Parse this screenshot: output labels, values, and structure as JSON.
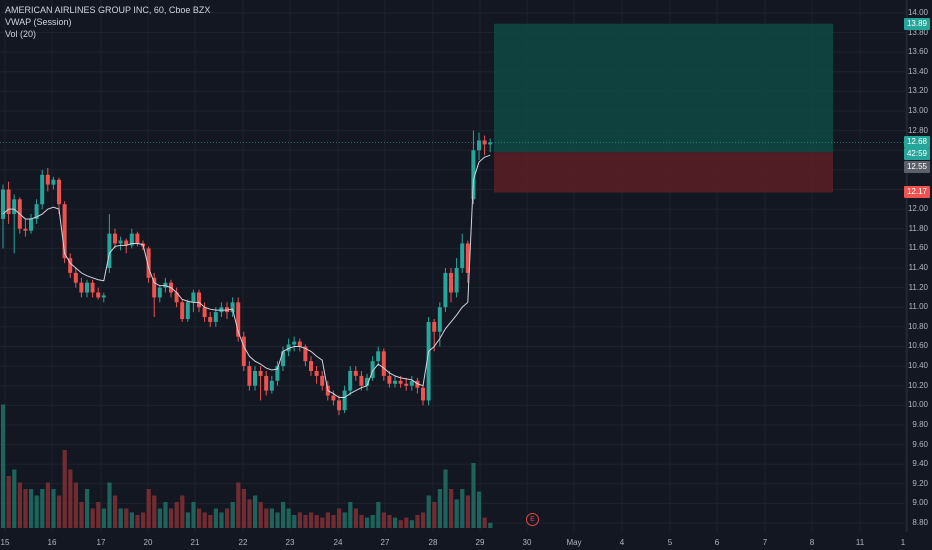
{
  "legend": {
    "symbol": "AMERICAN AIRLINES GROUP INC, 60, Cboe BZX",
    "vwap": "VWAP (Session)",
    "vol": "Vol (20)"
  },
  "price_labels": {
    "target": "13.89",
    "last": "12.68",
    "countdown": "42:59",
    "vwap_value": "12.55",
    "stop": "12.17"
  },
  "earnings_marker": "E",
  "colors": {
    "background": "#131722",
    "up": "#26a69a",
    "down": "#ef5350",
    "vwap": "#d1d4dc",
    "target_zone": "#0f4a44",
    "stop_zone": "#5c1f26"
  },
  "chart_data": {
    "type": "candlestick",
    "timeframe": "60",
    "y_axis": {
      "ticks": [
        "14.00",
        "13.80",
        "13.60",
        "13.40",
        "13.20",
        "13.00",
        "12.80",
        "12.60",
        "12.40",
        "12.20",
        "12.00",
        "11.80",
        "11.60",
        "11.40",
        "11.20",
        "11.00",
        "10.80",
        "10.60",
        "10.40",
        "10.20",
        "10.00",
        "9.80",
        "9.60",
        "9.40",
        "9.20",
        "9.00",
        "8.80"
      ],
      "range": [
        8.78,
        14.03
      ]
    },
    "x_axis": {
      "labels": [
        "15",
        "16",
        "17",
        "20",
        "21",
        "22",
        "23",
        "24",
        "27",
        "28",
        "29",
        "30",
        "May",
        "4",
        "5",
        "6",
        "7",
        "8",
        "11",
        "1"
      ]
    },
    "candles": [
      [
        11.9,
        12.2,
        12.25,
        11.6
      ],
      [
        12.2,
        11.95,
        12.28,
        11.85
      ],
      [
        11.95,
        12.1,
        12.15,
        11.55
      ],
      [
        12.1,
        11.8,
        12.12,
        11.75
      ],
      [
        11.8,
        11.78,
        11.9,
        11.72
      ],
      [
        11.78,
        11.9,
        11.95,
        11.75
      ],
      [
        11.9,
        12.05,
        12.1,
        11.85
      ],
      [
        12.05,
        12.35,
        12.4,
        12.0
      ],
      [
        12.35,
        12.25,
        12.42,
        12.18
      ],
      [
        12.25,
        12.3,
        12.33,
        12.2
      ],
      [
        12.3,
        12.05,
        12.32,
        11.95
      ],
      [
        12.05,
        11.5,
        12.08,
        11.45
      ],
      [
        11.5,
        11.35,
        11.55,
        11.3
      ],
      [
        11.35,
        11.25,
        11.4,
        11.2
      ],
      [
        11.25,
        11.15,
        11.3,
        11.1
      ],
      [
        11.15,
        11.25,
        11.28,
        11.1
      ],
      [
        11.25,
        11.15,
        11.28,
        11.1
      ],
      [
        11.15,
        11.1,
        11.2,
        11.08
      ],
      [
        11.1,
        11.12,
        11.15,
        11.05
      ],
      [
        11.4,
        11.75,
        11.95,
        11.35
      ],
      [
        11.75,
        11.65,
        11.8,
        11.6
      ],
      [
        11.65,
        11.68,
        11.72,
        11.58
      ],
      [
        11.68,
        11.63,
        11.7,
        11.55
      ],
      [
        11.63,
        11.75,
        11.8,
        11.6
      ],
      [
        11.75,
        11.65,
        11.77,
        11.62
      ],
      [
        11.65,
        11.62,
        11.68,
        11.58
      ],
      [
        11.6,
        11.3,
        11.62,
        11.25
      ],
      [
        11.3,
        11.1,
        11.35,
        10.9
      ],
      [
        11.1,
        11.2,
        11.22,
        11.05
      ],
      [
        11.2,
        11.25,
        11.3,
        11.15
      ],
      [
        11.25,
        11.15,
        11.28,
        11.1
      ],
      [
        11.15,
        11.05,
        11.2,
        11.0
      ],
      [
        11.05,
        10.88,
        11.08,
        10.85
      ],
      [
        10.88,
        11.05,
        11.08,
        10.85
      ],
      [
        11.05,
        11.15,
        11.18,
        10.95
      ],
      [
        11.15,
        11.0,
        11.18,
        10.95
      ],
      [
        11.0,
        10.9,
        11.05,
        10.85
      ],
      [
        10.9,
        10.85,
        10.95,
        10.8
      ],
      [
        10.85,
        10.95,
        11.0,
        10.8
      ],
      [
        10.95,
        11.0,
        11.05,
        10.9
      ],
      [
        11.0,
        10.95,
        11.05,
        10.88
      ],
      [
        10.95,
        11.05,
        11.1,
        10.9
      ],
      [
        11.05,
        10.7,
        11.1,
        10.65
      ],
      [
        10.7,
        10.4,
        10.75,
        10.35
      ],
      [
        10.4,
        10.2,
        10.45,
        10.15
      ],
      [
        10.2,
        10.35,
        10.4,
        10.15
      ],
      [
        10.35,
        10.3,
        10.4,
        10.05
      ],
      [
        10.3,
        10.15,
        10.35,
        10.1
      ],
      [
        10.15,
        10.25,
        10.3,
        10.12
      ],
      [
        10.25,
        10.4,
        10.45,
        10.2
      ],
      [
        10.4,
        10.55,
        10.6,
        10.35
      ],
      [
        10.55,
        10.62,
        10.68,
        10.5
      ],
      [
        10.62,
        10.65,
        10.7,
        10.55
      ],
      [
        10.65,
        10.6,
        10.68,
        10.55
      ],
      [
        10.6,
        10.45,
        10.62,
        10.4
      ],
      [
        10.45,
        10.35,
        10.5,
        10.3
      ],
      [
        10.35,
        10.3,
        10.4,
        10.22
      ],
      [
        10.3,
        10.2,
        10.35,
        10.15
      ],
      [
        10.2,
        10.1,
        10.25,
        10.05
      ],
      [
        10.1,
        10.05,
        10.15,
        10.0
      ],
      [
        10.05,
        9.95,
        10.1,
        9.9
      ],
      [
        9.95,
        10.15,
        10.2,
        9.92
      ],
      [
        10.15,
        10.35,
        10.4,
        10.1
      ],
      [
        10.35,
        10.3,
        10.4,
        10.25
      ],
      [
        10.3,
        10.2,
        10.35,
        10.15
      ],
      [
        10.2,
        10.28,
        10.32,
        10.15
      ],
      [
        10.28,
        10.45,
        10.5,
        10.25
      ],
      [
        10.45,
        10.55,
        10.6,
        10.4
      ],
      [
        10.55,
        10.3,
        10.58,
        10.25
      ],
      [
        10.3,
        10.22,
        10.35,
        10.18
      ],
      [
        10.22,
        10.25,
        10.3,
        10.18
      ],
      [
        10.25,
        10.22,
        10.3,
        10.18
      ],
      [
        10.22,
        10.2,
        10.28,
        10.15
      ],
      [
        10.2,
        10.25,
        10.3,
        10.15
      ],
      [
        10.25,
        10.18,
        10.28,
        10.12
      ],
      [
        10.18,
        10.05,
        10.2,
        10.0
      ],
      [
        10.05,
        10.85,
        10.9,
        10.0
      ],
      [
        10.85,
        10.75,
        10.88,
        10.55
      ],
      [
        10.75,
        11.0,
        11.05,
        10.6
      ],
      [
        11.0,
        11.35,
        11.4,
        10.95
      ],
      [
        11.35,
        11.15,
        11.4,
        11.05
      ],
      [
        11.15,
        11.4,
        11.5,
        11.1
      ],
      [
        11.4,
        11.65,
        11.75,
        11.35
      ],
      [
        11.65,
        11.35,
        11.68,
        11.25
      ],
      [
        12.1,
        12.6,
        12.8,
        12.05
      ],
      [
        12.6,
        12.7,
        12.78,
        12.5
      ],
      [
        12.7,
        12.66,
        12.75,
        12.55
      ],
      [
        12.66,
        12.68,
        12.72,
        12.58
      ]
    ],
    "vwap": [
      11.95,
      12.0,
      12.0,
      11.95,
      11.9,
      11.9,
      11.92,
      11.95,
      12.0,
      12.02,
      12.0,
      11.55,
      11.45,
      11.4,
      11.35,
      11.32,
      11.3,
      11.28,
      11.27,
      11.55,
      11.62,
      11.63,
      11.63,
      11.65,
      11.65,
      11.64,
      11.4,
      11.25,
      11.22,
      11.22,
      11.2,
      11.15,
      11.08,
      11.06,
      11.05,
      11.05,
      11.0,
      10.98,
      10.97,
      10.97,
      10.97,
      10.98,
      10.75,
      10.6,
      10.5,
      10.45,
      10.42,
      10.38,
      10.36,
      10.37,
      10.55,
      10.58,
      10.6,
      10.6,
      10.58,
      10.55,
      10.5,
      10.46,
      10.15,
      10.12,
      10.08,
      10.08,
      10.12,
      10.15,
      10.18,
      10.2,
      10.35,
      10.42,
      10.38,
      10.33,
      10.3,
      10.28,
      10.27,
      10.26,
      10.22,
      10.2,
      10.55,
      10.6,
      10.68,
      10.78,
      10.85,
      10.92,
      11.0,
      11.05,
      12.3,
      12.48,
      12.53,
      12.55
    ],
    "volume": [
      0.95,
      0.4,
      0.45,
      0.35,
      0.3,
      0.3,
      0.25,
      0.3,
      0.35,
      0.3,
      0.25,
      0.6,
      0.45,
      0.35,
      0.2,
      0.3,
      0.15,
      0.2,
      0.15,
      0.35,
      0.25,
      0.15,
      0.15,
      0.12,
      0.1,
      0.12,
      0.3,
      0.25,
      0.15,
      0.2,
      0.15,
      0.2,
      0.25,
      0.12,
      0.2,
      0.15,
      0.12,
      0.1,
      0.15,
      0.12,
      0.15,
      0.2,
      0.35,
      0.3,
      0.22,
      0.25,
      0.2,
      0.15,
      0.15,
      0.12,
      0.2,
      0.15,
      0.1,
      0.12,
      0.1,
      0.12,
      0.1,
      0.08,
      0.12,
      0.1,
      0.15,
      0.12,
      0.2,
      0.15,
      0.1,
      0.08,
      0.1,
      0.2,
      0.12,
      0.1,
      0.08,
      0.06,
      0.08,
      0.06,
      0.1,
      0.12,
      0.25,
      0.2,
      0.3,
      0.45,
      0.3,
      0.22,
      0.3,
      0.25,
      0.5,
      0.28,
      0.08,
      0.04
    ],
    "position_tool": {
      "entry": 12.58,
      "target": 13.89,
      "stop": 12.17
    }
  }
}
